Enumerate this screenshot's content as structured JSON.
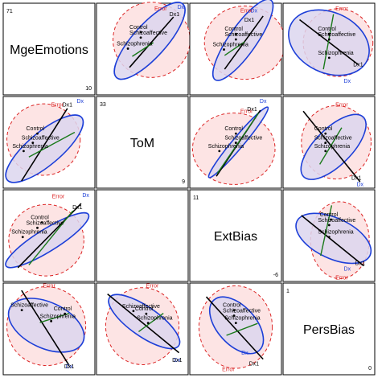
{
  "chart_data": {
    "type": "pairs-hypothesis-error",
    "variables": [
      "MgeEmotions",
      "ToM",
      "ExtBias",
      "PersBias"
    ],
    "ranges": {
      "MgeEmotions": {
        "max": "71",
        "min": "10"
      },
      "ToM": {
        "max": "33",
        "min": "9"
      },
      "ExtBias": {
        "max": "11",
        "min": "-6"
      },
      "PersBias": {
        "max": "1",
        "min": "0"
      }
    },
    "groups": [
      "Control",
      "Schizoaffective",
      "Schizophrenia"
    ],
    "ellipse_labels": {
      "error": "Error",
      "hypothesis": "Dx",
      "contrast": "Dx1"
    },
    "group_means": {
      "Control": {
        "MgeEmotions": 45,
        "ToM": 25,
        "ExtBias": 1.5,
        "PersBias": 0.28
      },
      "Schizoaffective": {
        "MgeEmotions": 42,
        "ToM": 22,
        "ExtBias": 2.8,
        "PersBias": 0.42
      },
      "Schizophrenia": {
        "MgeEmotions": 34,
        "ToM": 19,
        "ExtBias": -0.2,
        "PersBias": 0.48
      }
    },
    "colors": {
      "error_stroke": "#dc2626",
      "error_fill": "#fde4e4",
      "hypothesis_stroke": "#1d3fd8",
      "hypothesis_fill": "#dcd6ef",
      "contrast_line": "#000000",
      "second_contrast_line": "#1b7a1b",
      "error_label": "#dc2626",
      "hypothesis_label": "#1d3fd8"
    }
  }
}
